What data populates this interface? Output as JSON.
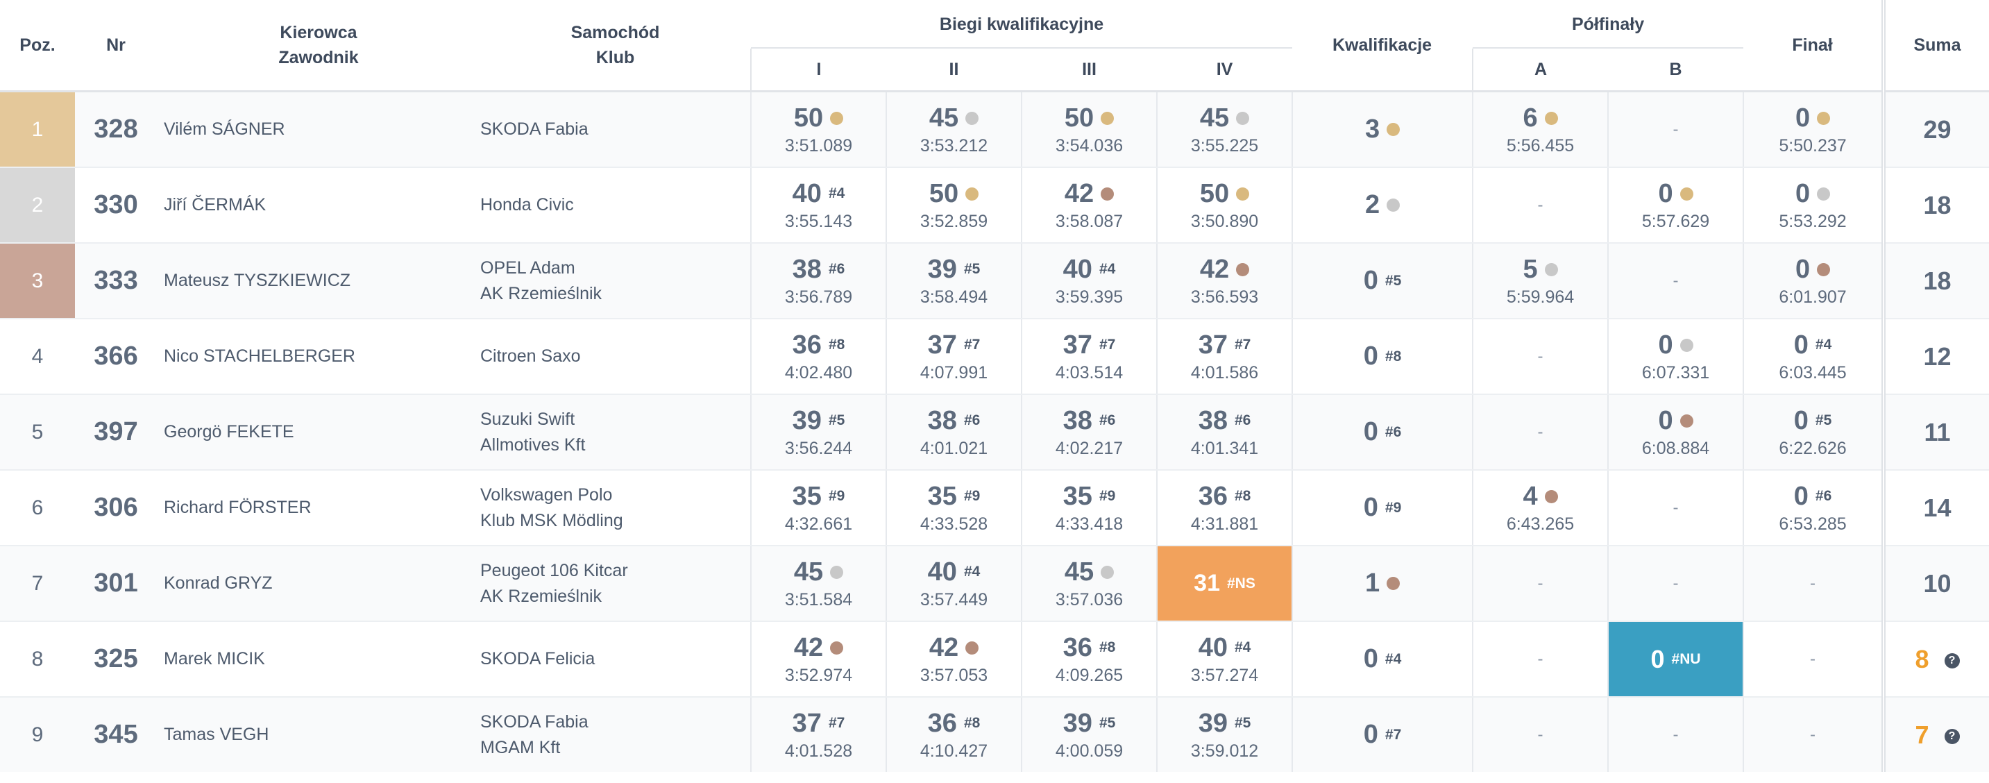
{
  "headers": {
    "pos": "Poz.",
    "nr": "Nr",
    "driver_line1": "Kierowca",
    "driver_line2": "Zawodnik",
    "car_line1": "Samochód",
    "car_line2": "Klub",
    "heats": "Biegi kwalifikacyjne",
    "heat_labels": [
      "I",
      "II",
      "III",
      "IV"
    ],
    "qualification": "Kwalifikacje",
    "semifinals": "Półfinały",
    "semi_labels": [
      "A",
      "B"
    ],
    "final": "Finał",
    "sum": "Suma"
  },
  "medal_colors": {
    "gold": "#d9b97e",
    "silver": "#c8c8c8",
    "bronze": "#b48c7a"
  },
  "rows": [
    {
      "pos": "1",
      "nr": "328",
      "driver": "Vilém SÁGNER",
      "car": "SKODA Fabia",
      "club": "",
      "heats": [
        {
          "pts": "50",
          "mark": "gold",
          "rank": "",
          "time": "3:51.089"
        },
        {
          "pts": "45",
          "mark": "silver",
          "rank": "",
          "time": "3:53.212"
        },
        {
          "pts": "50",
          "mark": "gold",
          "rank": "",
          "time": "3:54.036"
        },
        {
          "pts": "45",
          "mark": "silver",
          "rank": "",
          "time": "3:55.225"
        }
      ],
      "qual": {
        "pts": "3",
        "mark": "gold",
        "rank": ""
      },
      "semiA": {
        "pts": "6",
        "mark": "gold",
        "rank": "",
        "time": "5:56.455"
      },
      "semiB": {
        "dash": "-"
      },
      "final": {
        "pts": "0",
        "mark": "gold",
        "rank": "",
        "time": "5:50.237"
      },
      "sum": "29",
      "sum_warn": false
    },
    {
      "pos": "2",
      "nr": "330",
      "driver": "Jiří ČERMÁK",
      "car": "Honda Civic",
      "club": "",
      "heats": [
        {
          "pts": "40",
          "mark": "",
          "rank": "#4",
          "time": "3:55.143"
        },
        {
          "pts": "50",
          "mark": "gold",
          "rank": "",
          "time": "3:52.859"
        },
        {
          "pts": "42",
          "mark": "bronze",
          "rank": "",
          "time": "3:58.087"
        },
        {
          "pts": "50",
          "mark": "gold",
          "rank": "",
          "time": "3:50.890"
        }
      ],
      "qual": {
        "pts": "2",
        "mark": "silver",
        "rank": ""
      },
      "semiA": {
        "dash": "-"
      },
      "semiB": {
        "pts": "0",
        "mark": "gold",
        "rank": "",
        "time": "5:57.629"
      },
      "final": {
        "pts": "0",
        "mark": "silver",
        "rank": "",
        "time": "5:53.292"
      },
      "sum": "18",
      "sum_warn": false
    },
    {
      "pos": "3",
      "nr": "333",
      "driver": "Mateusz TYSZKIEWICZ",
      "car": "OPEL Adam",
      "club": "AK Rzemieślnik",
      "heats": [
        {
          "pts": "38",
          "mark": "",
          "rank": "#6",
          "time": "3:56.789"
        },
        {
          "pts": "39",
          "mark": "",
          "rank": "#5",
          "time": "3:58.494"
        },
        {
          "pts": "40",
          "mark": "",
          "rank": "#4",
          "time": "3:59.395"
        },
        {
          "pts": "42",
          "mark": "bronze",
          "rank": "",
          "time": "3:56.593"
        }
      ],
      "qual": {
        "pts": "0",
        "mark": "",
        "rank": "#5"
      },
      "semiA": {
        "pts": "5",
        "mark": "silver",
        "rank": "",
        "time": "5:59.964"
      },
      "semiB": {
        "dash": "-"
      },
      "final": {
        "pts": "0",
        "mark": "bronze",
        "rank": "",
        "time": "6:01.907"
      },
      "sum": "18",
      "sum_warn": false
    },
    {
      "pos": "4",
      "nr": "366",
      "driver": "Nico STACHELBERGER",
      "car": "Citroen Saxo",
      "club": "",
      "heats": [
        {
          "pts": "36",
          "mark": "",
          "rank": "#8",
          "time": "4:02.480"
        },
        {
          "pts": "37",
          "mark": "",
          "rank": "#7",
          "time": "4:07.991"
        },
        {
          "pts": "37",
          "mark": "",
          "rank": "#7",
          "time": "4:03.514"
        },
        {
          "pts": "37",
          "mark": "",
          "rank": "#7",
          "time": "4:01.586"
        }
      ],
      "qual": {
        "pts": "0",
        "mark": "",
        "rank": "#8"
      },
      "semiA": {
        "dash": "-"
      },
      "semiB": {
        "pts": "0",
        "mark": "silver",
        "rank": "",
        "time": "6:07.331"
      },
      "final": {
        "pts": "0",
        "mark": "",
        "rank": "#4",
        "time": "6:03.445"
      },
      "sum": "12",
      "sum_warn": false
    },
    {
      "pos": "5",
      "nr": "397",
      "driver": "Georgö FEKETE",
      "car": "Suzuki Swift",
      "club": "Allmotives Kft",
      "heats": [
        {
          "pts": "39",
          "mark": "",
          "rank": "#5",
          "time": "3:56.244"
        },
        {
          "pts": "38",
          "mark": "",
          "rank": "#6",
          "time": "4:01.021"
        },
        {
          "pts": "38",
          "mark": "",
          "rank": "#6",
          "time": "4:02.217"
        },
        {
          "pts": "38",
          "mark": "",
          "rank": "#6",
          "time": "4:01.341"
        }
      ],
      "qual": {
        "pts": "0",
        "mark": "",
        "rank": "#6"
      },
      "semiA": {
        "dash": "-"
      },
      "semiB": {
        "pts": "0",
        "mark": "bronze",
        "rank": "",
        "time": "6:08.884"
      },
      "final": {
        "pts": "0",
        "mark": "",
        "rank": "#5",
        "time": "6:22.626"
      },
      "sum": "11",
      "sum_warn": false
    },
    {
      "pos": "6",
      "nr": "306",
      "driver": "Richard FÖRSTER",
      "car": "Volkswagen Polo",
      "club": "Klub MSK Mödling",
      "heats": [
        {
          "pts": "35",
          "mark": "",
          "rank": "#9",
          "time": "4:32.661"
        },
        {
          "pts": "35",
          "mark": "",
          "rank": "#9",
          "time": "4:33.528"
        },
        {
          "pts": "35",
          "mark": "",
          "rank": "#9",
          "time": "4:33.418"
        },
        {
          "pts": "36",
          "mark": "",
          "rank": "#8",
          "time": "4:31.881"
        }
      ],
      "qual": {
        "pts": "0",
        "mark": "",
        "rank": "#9"
      },
      "semiA": {
        "pts": "4",
        "mark": "bronze",
        "rank": "",
        "time": "6:43.265"
      },
      "semiB": {
        "dash": "-"
      },
      "final": {
        "pts": "0",
        "mark": "",
        "rank": "#6",
        "time": "6:53.285"
      },
      "sum": "14",
      "sum_warn": false
    },
    {
      "pos": "7",
      "nr": "301",
      "driver": "Konrad GRYZ",
      "car": "Peugeot 106 Kitcar",
      "club": "AK Rzemieślnik",
      "heats": [
        {
          "pts": "45",
          "mark": "silver",
          "rank": "",
          "time": "3:51.584"
        },
        {
          "pts": "40",
          "mark": "",
          "rank": "#4",
          "time": "3:57.449"
        },
        {
          "pts": "45",
          "mark": "silver",
          "rank": "",
          "time": "3:57.036"
        },
        {
          "pts": "31",
          "mark": "",
          "rank": "#NS",
          "time": "",
          "flag": "ns"
        }
      ],
      "qual": {
        "pts": "1",
        "mark": "bronze",
        "rank": ""
      },
      "semiA": {
        "dash": "-"
      },
      "semiB": {
        "dash": "-"
      },
      "final": {
        "dash": "-"
      },
      "sum": "10",
      "sum_warn": false
    },
    {
      "pos": "8",
      "nr": "325",
      "driver": "Marek MICIK",
      "car": "SKODA Felicia",
      "club": "",
      "heats": [
        {
          "pts": "42",
          "mark": "bronze",
          "rank": "",
          "time": "3:52.974"
        },
        {
          "pts": "42",
          "mark": "bronze",
          "rank": "",
          "time": "3:57.053"
        },
        {
          "pts": "36",
          "mark": "",
          "rank": "#8",
          "time": "4:09.265"
        },
        {
          "pts": "40",
          "mark": "",
          "rank": "#4",
          "time": "3:57.274"
        }
      ],
      "qual": {
        "pts": "0",
        "mark": "",
        "rank": "#4"
      },
      "semiA": {
        "dash": "-"
      },
      "semiB": {
        "pts": "0",
        "mark": "",
        "rank": "#NU",
        "time": "",
        "flag": "nu"
      },
      "final": {
        "dash": "-"
      },
      "sum": "8",
      "sum_warn": true
    },
    {
      "pos": "9",
      "nr": "345",
      "driver": "Tamas VEGH",
      "car": "SKODA Fabia",
      "club": "MGAM Kft",
      "heats": [
        {
          "pts": "37",
          "mark": "",
          "rank": "#7",
          "time": "4:01.528"
        },
        {
          "pts": "36",
          "mark": "",
          "rank": "#8",
          "time": "4:10.427"
        },
        {
          "pts": "39",
          "mark": "",
          "rank": "#5",
          "time": "4:00.059"
        },
        {
          "pts": "39",
          "mark": "",
          "rank": "#5",
          "time": "3:59.012"
        }
      ],
      "qual": {
        "pts": "0",
        "mark": "",
        "rank": "#7"
      },
      "semiA": {
        "dash": "-"
      },
      "semiB": {
        "dash": "-"
      },
      "final": {
        "dash": "-"
      },
      "sum": "7",
      "sum_warn": true
    }
  ],
  "help_icon": "question-circle-icon",
  "help_glyph": "?"
}
